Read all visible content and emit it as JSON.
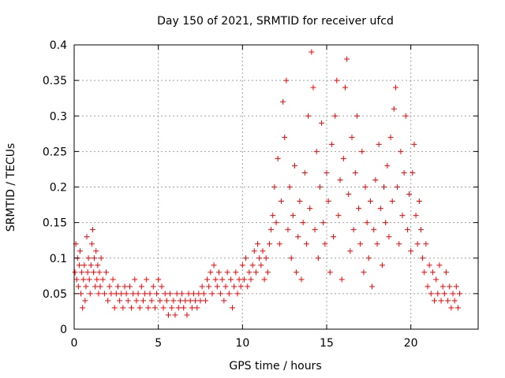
{
  "chart_data": {
    "type": "scatter",
    "title": "Day 150 of 2021, SRMTID for receiver ufcd",
    "xlabel": "GPS time / hours",
    "ylabel": "SRMTID / TECUs",
    "xlim": [
      0,
      24
    ],
    "ylim": [
      0,
      0.4
    ],
    "xticks": [
      0,
      5,
      10,
      15,
      20
    ],
    "xtick_labels": [
      "0",
      "5",
      "10",
      "15",
      "20"
    ],
    "yticks": [
      0,
      0.05,
      0.1,
      0.15,
      0.2,
      0.25,
      0.3,
      0.35,
      0.4
    ],
    "ytick_labels": [
      "0",
      "0.05",
      "0.1",
      "0.15",
      "0.2",
      "0.25",
      "0.3",
      "0.35",
      "0.4"
    ],
    "grid": true,
    "marker": "plus",
    "color": "#ff0000",
    "series": [
      {
        "name": "SRMTID",
        "points": [
          [
            0.05,
            0.08
          ],
          [
            0.1,
            0.12
          ],
          [
            0.15,
            0.07
          ],
          [
            0.2,
            0.1
          ],
          [
            0.25,
            0.06
          ],
          [
            0.3,
            0.09
          ],
          [
            0.35,
            0.11
          ],
          [
            0.4,
            0.05
          ],
          [
            0.45,
            0.08
          ],
          [
            0.5,
            0.03
          ],
          [
            0.55,
            0.07
          ],
          [
            0.6,
            0.09
          ],
          [
            0.65,
            0.04
          ],
          [
            0.7,
            0.06
          ],
          [
            0.75,
            0.13
          ],
          [
            0.8,
            0.08
          ],
          [
            0.85,
            0.1
          ],
          [
            0.9,
            0.07
          ],
          [
            0.95,
            0.05
          ],
          [
            1.0,
            0.09
          ],
          [
            1.05,
            0.12
          ],
          [
            1.1,
            0.14
          ],
          [
            1.15,
            0.08
          ],
          [
            1.2,
            0.1
          ],
          [
            1.25,
            0.06
          ],
          [
            1.3,
            0.11
          ],
          [
            1.35,
            0.07
          ],
          [
            1.4,
            0.09
          ],
          [
            1.45,
            0.05
          ],
          [
            1.5,
            0.08
          ],
          [
            1.55,
            0.06
          ],
          [
            1.6,
            0.1
          ],
          [
            1.7,
            0.07
          ],
          [
            1.8,
            0.05
          ],
          [
            1.9,
            0.08
          ],
          [
            2.0,
            0.04
          ],
          [
            2.1,
            0.06
          ],
          [
            2.2,
            0.05
          ],
          [
            2.3,
            0.07
          ],
          [
            2.4,
            0.03
          ],
          [
            2.5,
            0.05
          ],
          [
            2.6,
            0.06
          ],
          [
            2.7,
            0.04
          ],
          [
            2.8,
            0.05
          ],
          [
            2.9,
            0.03
          ],
          [
            3.0,
            0.06
          ],
          [
            3.1,
            0.05
          ],
          [
            3.2,
            0.04
          ],
          [
            3.3,
            0.06
          ],
          [
            3.4,
            0.03
          ],
          [
            3.5,
            0.05
          ],
          [
            3.6,
            0.07
          ],
          [
            3.7,
            0.04
          ],
          [
            3.8,
            0.05
          ],
          [
            3.9,
            0.03
          ],
          [
            4.0,
            0.06
          ],
          [
            4.1,
            0.04
          ],
          [
            4.2,
            0.05
          ],
          [
            4.3,
            0.07
          ],
          [
            4.4,
            0.03
          ],
          [
            4.5,
            0.05
          ],
          [
            4.6,
            0.04
          ],
          [
            4.7,
            0.06
          ],
          [
            4.8,
            0.03
          ],
          [
            4.9,
            0.05
          ],
          [
            5.0,
            0.07
          ],
          [
            5.1,
            0.04
          ],
          [
            5.2,
            0.06
          ],
          [
            5.3,
            0.03
          ],
          [
            5.4,
            0.05
          ],
          [
            5.5,
            0.04
          ],
          [
            5.6,
            0.02
          ],
          [
            5.7,
            0.05
          ],
          [
            5.8,
            0.03
          ],
          [
            5.9,
            0.04
          ],
          [
            6.0,
            0.02
          ],
          [
            6.1,
            0.05
          ],
          [
            6.2,
            0.03
          ],
          [
            6.3,
            0.04
          ],
          [
            6.4,
            0.05
          ],
          [
            6.5,
            0.03
          ],
          [
            6.6,
            0.04
          ],
          [
            6.7,
            0.02
          ],
          [
            6.8,
            0.05
          ],
          [
            6.9,
            0.04
          ],
          [
            7.0,
            0.03
          ],
          [
            7.1,
            0.05
          ],
          [
            7.2,
            0.04
          ],
          [
            7.3,
            0.03
          ],
          [
            7.4,
            0.05
          ],
          [
            7.5,
            0.04
          ],
          [
            7.6,
            0.06
          ],
          [
            7.7,
            0.05
          ],
          [
            7.8,
            0.04
          ],
          [
            7.9,
            0.07
          ],
          [
            8.0,
            0.06
          ],
          [
            8.1,
            0.08
          ],
          [
            8.2,
            0.05
          ],
          [
            8.3,
            0.09
          ],
          [
            8.4,
            0.07
          ],
          [
            8.5,
            0.06
          ],
          [
            8.6,
            0.08
          ],
          [
            8.7,
            0.05
          ],
          [
            8.8,
            0.07
          ],
          [
            8.9,
            0.04
          ],
          [
            9.0,
            0.06
          ],
          [
            9.1,
            0.08
          ],
          [
            9.2,
            0.05
          ],
          [
            9.3,
            0.07
          ],
          [
            9.4,
            0.03
          ],
          [
            9.5,
            0.06
          ],
          [
            9.6,
            0.08
          ],
          [
            9.7,
            0.05
          ],
          [
            9.8,
            0.07
          ],
          [
            9.9,
            0.06
          ],
          [
            10.0,
            0.09
          ],
          [
            10.1,
            0.07
          ],
          [
            10.2,
            0.1
          ],
          [
            10.3,
            0.06
          ],
          [
            10.4,
            0.08
          ],
          [
            10.5,
            0.07
          ],
          [
            10.6,
            0.09
          ],
          [
            10.7,
            0.11
          ],
          [
            10.8,
            0.08
          ],
          [
            10.9,
            0.12
          ],
          [
            11.0,
            0.1
          ],
          [
            11.1,
            0.09
          ],
          [
            11.2,
            0.11
          ],
          [
            11.3,
            0.07
          ],
          [
            11.4,
            0.1
          ],
          [
            11.5,
            0.08
          ],
          [
            11.6,
            0.12
          ],
          [
            11.7,
            0.14
          ],
          [
            11.8,
            0.16
          ],
          [
            11.9,
            0.2
          ],
          [
            12.0,
            0.15
          ],
          [
            12.1,
            0.24
          ],
          [
            12.2,
            0.12
          ],
          [
            12.3,
            0.18
          ],
          [
            12.4,
            0.32
          ],
          [
            12.5,
            0.27
          ],
          [
            12.6,
            0.35
          ],
          [
            12.7,
            0.14
          ],
          [
            12.8,
            0.2
          ],
          [
            12.9,
            0.1
          ],
          [
            13.0,
            0.16
          ],
          [
            13.1,
            0.23
          ],
          [
            13.2,
            0.08
          ],
          [
            13.3,
            0.13
          ],
          [
            13.4,
            0.18
          ],
          [
            13.5,
            0.07
          ],
          [
            13.6,
            0.15
          ],
          [
            13.7,
            0.22
          ],
          [
            13.8,
            0.12
          ],
          [
            13.9,
            0.3
          ],
          [
            14.0,
            0.17
          ],
          [
            14.1,
            0.39
          ],
          [
            14.2,
            0.34
          ],
          [
            14.3,
            0.14
          ],
          [
            14.4,
            0.25
          ],
          [
            14.5,
            0.1
          ],
          [
            14.6,
            0.2
          ],
          [
            14.7,
            0.29
          ],
          [
            14.8,
            0.15
          ],
          [
            14.9,
            0.12
          ],
          [
            15.0,
            0.22
          ],
          [
            15.1,
            0.18
          ],
          [
            15.2,
            0.08
          ],
          [
            15.3,
            0.26
          ],
          [
            15.4,
            0.13
          ],
          [
            15.5,
            0.3
          ],
          [
            15.6,
            0.35
          ],
          [
            15.7,
            0.16
          ],
          [
            15.8,
            0.21
          ],
          [
            15.9,
            0.07
          ],
          [
            16.0,
            0.24
          ],
          [
            16.1,
            0.34
          ],
          [
            16.2,
            0.38
          ],
          [
            16.3,
            0.19
          ],
          [
            16.4,
            0.11
          ],
          [
            16.5,
            0.27
          ],
          [
            16.6,
            0.14
          ],
          [
            16.7,
            0.22
          ],
          [
            16.8,
            0.3
          ],
          [
            16.9,
            0.17
          ],
          [
            17.0,
            0.12
          ],
          [
            17.1,
            0.25
          ],
          [
            17.2,
            0.08
          ],
          [
            17.3,
            0.2
          ],
          [
            17.4,
            0.15
          ],
          [
            17.5,
            0.1
          ],
          [
            17.6,
            0.18
          ],
          [
            17.7,
            0.06
          ],
          [
            17.8,
            0.14
          ],
          [
            17.9,
            0.21
          ],
          [
            18.0,
            0.12
          ],
          [
            18.1,
            0.26
          ],
          [
            18.2,
            0.17
          ],
          [
            18.3,
            0.09
          ],
          [
            18.4,
            0.2
          ],
          [
            18.5,
            0.15
          ],
          [
            18.6,
            0.23
          ],
          [
            18.7,
            0.13
          ],
          [
            18.8,
            0.27
          ],
          [
            18.9,
            0.18
          ],
          [
            19.0,
            0.31
          ],
          [
            19.1,
            0.34
          ],
          [
            19.2,
            0.2
          ],
          [
            19.3,
            0.12
          ],
          [
            19.4,
            0.25
          ],
          [
            19.5,
            0.16
          ],
          [
            19.6,
            0.22
          ],
          [
            19.7,
            0.3
          ],
          [
            19.8,
            0.14
          ],
          [
            19.9,
            0.19
          ],
          [
            20.0,
            0.11
          ],
          [
            20.1,
            0.22
          ],
          [
            20.2,
            0.26
          ],
          [
            20.3,
            0.16
          ],
          [
            20.4,
            0.12
          ],
          [
            20.5,
            0.18
          ],
          [
            20.6,
            0.14
          ],
          [
            20.7,
            0.1
          ],
          [
            20.8,
            0.08
          ],
          [
            20.9,
            0.12
          ],
          [
            21.0,
            0.06
          ],
          [
            21.1,
            0.09
          ],
          [
            21.2,
            0.05
          ],
          [
            21.3,
            0.08
          ],
          [
            21.4,
            0.04
          ],
          [
            21.5,
            0.07
          ],
          [
            21.6,
            0.05
          ],
          [
            21.7,
            0.09
          ],
          [
            21.8,
            0.04
          ],
          [
            21.9,
            0.06
          ],
          [
            22.0,
            0.05
          ],
          [
            22.1,
            0.08
          ],
          [
            22.2,
            0.04
          ],
          [
            22.3,
            0.06
          ],
          [
            22.4,
            0.03
          ],
          [
            22.5,
            0.05
          ],
          [
            22.6,
            0.04
          ],
          [
            22.7,
            0.06
          ],
          [
            22.8,
            0.03
          ],
          [
            22.9,
            0.05
          ]
        ]
      }
    ]
  }
}
